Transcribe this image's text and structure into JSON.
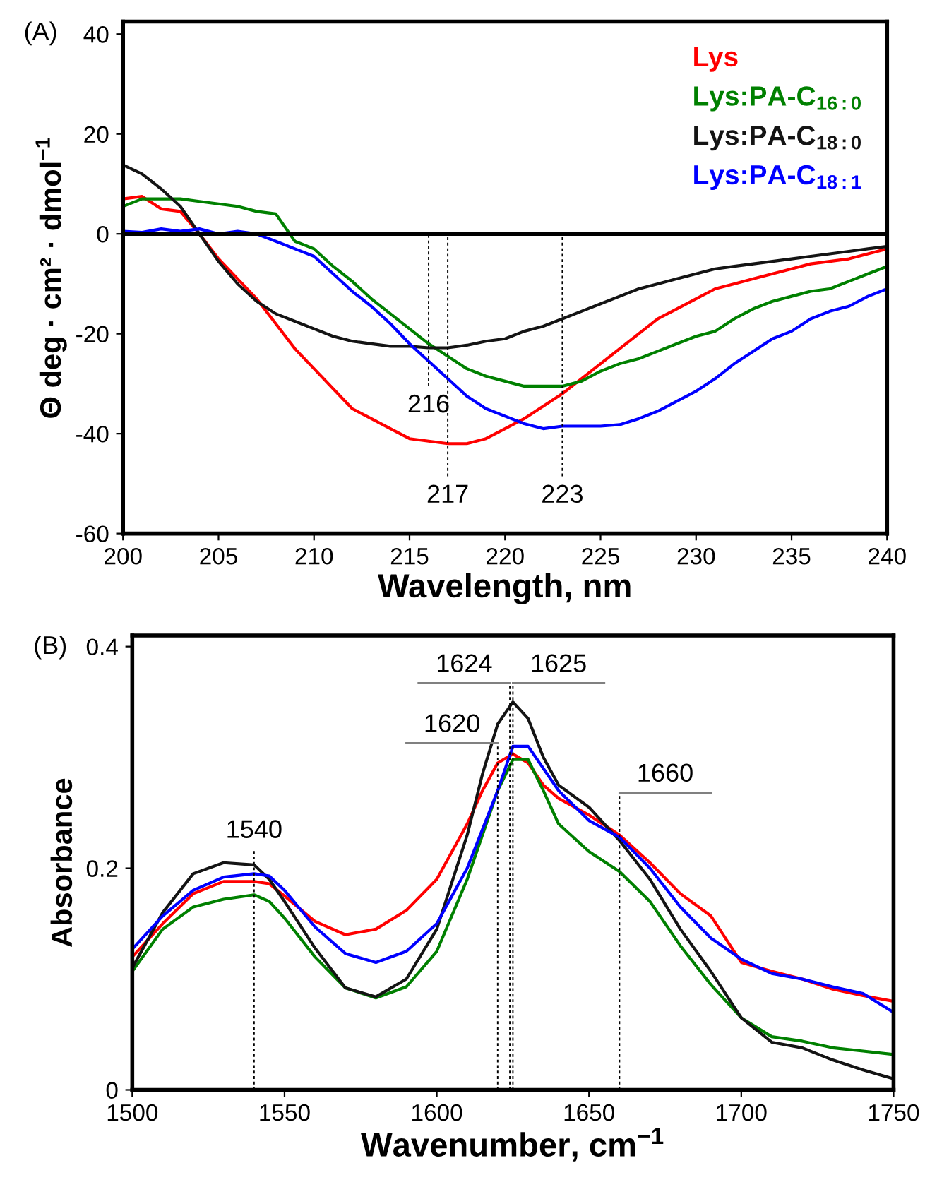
{
  "chart_data": [
    {
      "type": "line",
      "title": "(A)",
      "xlabel": "Wavelength, nm",
      "ylabel": "Θ deg · cm² · dmol$^{−1}$",
      "x": [
        200,
        201,
        202,
        203,
        204,
        205,
        206,
        207,
        208,
        209,
        210,
        211,
        212,
        213,
        214,
        215,
        216,
        217,
        218,
        219,
        220,
        221,
        222,
        223,
        224,
        225,
        226,
        227,
        228,
        229,
        230,
        231,
        232,
        233,
        234,
        235,
        236,
        237,
        238,
        239,
        240
      ],
      "series": [
        {
          "name": "Lys",
          "color": "#ff0000",
          "values": [
            7,
            7.5,
            5,
            4.5,
            0,
            -5,
            -9,
            -13,
            -18,
            -23,
            -27,
            -31,
            -35,
            -37,
            -39,
            -41,
            -41.5,
            -42,
            -42,
            -41,
            -39,
            -37,
            -34.5,
            -32,
            -29,
            -26,
            -23,
            -20,
            -17,
            -15,
            -13,
            -11,
            -10,
            -9,
            -8,
            -7,
            -6,
            -5.5,
            -5,
            -4,
            -3
          ]
        },
        {
          "name": "Lys:PA-C$_{16:0}$",
          "color": "#008000",
          "values": [
            5.5,
            7,
            7,
            7,
            6.5,
            6,
            5.5,
            4.5,
            4,
            -1.5,
            -3,
            -6.5,
            -9.5,
            -13,
            -16,
            -19,
            -22,
            -24.5,
            -27,
            -28.5,
            -29.5,
            -30.5,
            -30.5,
            -30.5,
            -29.5,
            -27.5,
            -26,
            -25,
            -23.5,
            -22,
            -20.5,
            -19.5,
            -17,
            -15,
            -13.5,
            -12.5,
            -11.5,
            -11,
            -9.5,
            -8,
            -6.5
          ]
        },
        {
          "name": "Lys:PA-C$_{18:0}$",
          "color": "#141414",
          "values": [
            13.8,
            12,
            9,
            5.5,
            0,
            -5.5,
            -10,
            -13.5,
            -16,
            -17.5,
            -19,
            -20.5,
            -21.5,
            -22,
            -22.5,
            -22.5,
            -22.8,
            -22.8,
            -22.3,
            -21.5,
            -21,
            -19.5,
            -18.5,
            -17,
            -15.5,
            -14,
            -12.5,
            -11,
            -10,
            -9,
            -8,
            -7,
            -6.5,
            -6,
            -5.5,
            -5,
            -4.5,
            -4,
            -3.5,
            -3,
            -2.5
          ]
        },
        {
          "name": "Lys:PA-C$_{18:1}$",
          "color": "#0000ff",
          "values": [
            0.5,
            0.3,
            1,
            0.5,
            1,
            0,
            0.5,
            0,
            -1.5,
            -3,
            -4.5,
            -8,
            -11.5,
            -14.5,
            -18,
            -22,
            -25.5,
            -29,
            -32.5,
            -35,
            -36.5,
            -38,
            -39,
            -38.5,
            -38.5,
            -38.5,
            -38.2,
            -37,
            -35.5,
            -33.5,
            -31.5,
            -29,
            -26,
            -23.5,
            -21,
            -19.5,
            -17,
            -15.5,
            -14.5,
            -12.5,
            -11
          ]
        }
      ],
      "xlim": [
        200,
        240
      ],
      "xticks": [
        200,
        205,
        210,
        215,
        220,
        225,
        230,
        235,
        240
      ],
      "ylim": [
        -60,
        42.5
      ],
      "yticks": [
        -60,
        -40,
        -20,
        0,
        20,
        40
      ],
      "ref_lines": [
        {
          "axis": "y",
          "value": 0,
          "color": "#000000",
          "line_style": "solid"
        },
        {
          "axis": "x",
          "value": 216,
          "label": "216",
          "color": "#000000",
          "line_style": "dashed"
        },
        {
          "axis": "x",
          "value": 217,
          "label": "217",
          "color": "#000000",
          "line_style": "dashed"
        },
        {
          "axis": "x",
          "value": 223,
          "label": "223",
          "color": "#000000",
          "line_style": "dashed"
        }
      ],
      "legend": "top right",
      "grid": false,
      "line_style": "solid"
    },
    {
      "type": "line",
      "title": "(B)",
      "xlabel": "Wavenumber, cm$^{−1}$",
      "ylabel": "Absorbance",
      "x": [
        1500,
        1510,
        1520,
        1530,
        1540,
        1545,
        1550,
        1560,
        1570,
        1580,
        1590,
        1600,
        1610,
        1615,
        1620,
        1625,
        1630,
        1635,
        1640,
        1650,
        1660,
        1670,
        1680,
        1690,
        1700,
        1710,
        1720,
        1730,
        1740,
        1750
      ],
      "series": [
        {
          "color": "#ff0000",
          "values": [
            0.12,
            0.15,
            0.177,
            0.188,
            0.188,
            0.186,
            0.175,
            0.152,
            0.14,
            0.145,
            0.162,
            0.19,
            0.24,
            0.27,
            0.295,
            0.303,
            0.295,
            0.275,
            0.263,
            0.248,
            0.23,
            0.205,
            0.177,
            0.157,
            0.115,
            0.107,
            0.1,
            0.091,
            0.085,
            0.08
          ]
        },
        {
          "color": "#008000",
          "values": [
            0.107,
            0.145,
            0.165,
            0.172,
            0.176,
            0.17,
            0.155,
            0.12,
            0.092,
            0.083,
            0.093,
            0.125,
            0.19,
            0.23,
            0.27,
            0.298,
            0.298,
            0.27,
            0.24,
            0.215,
            0.197,
            0.17,
            0.13,
            0.095,
            0.065,
            0.048,
            0.044,
            0.038,
            0.035,
            0.032
          ]
        },
        {
          "color": "#141414",
          "values": [
            0.11,
            0.16,
            0.195,
            0.205,
            0.203,
            0.19,
            0.17,
            0.128,
            0.092,
            0.084,
            0.1,
            0.145,
            0.23,
            0.285,
            0.33,
            0.35,
            0.335,
            0.3,
            0.275,
            0.255,
            0.225,
            0.19,
            0.145,
            0.107,
            0.065,
            0.043,
            0.038,
            0.027,
            0.018,
            0.01
          ]
        },
        {
          "color": "#0000ff",
          "values": [
            0.127,
            0.157,
            0.18,
            0.192,
            0.195,
            0.193,
            0.18,
            0.147,
            0.123,
            0.115,
            0.125,
            0.15,
            0.2,
            0.235,
            0.27,
            0.31,
            0.31,
            0.29,
            0.27,
            0.243,
            0.228,
            0.2,
            0.165,
            0.137,
            0.118,
            0.105,
            0.1,
            0.093,
            0.087,
            0.07
          ]
        }
      ],
      "xlim": [
        1500,
        1750
      ],
      "xticks": [
        1500,
        1550,
        1600,
        1650,
        1700,
        1750
      ],
      "ylim": [
        0,
        0.41
      ],
      "yticks": [
        0,
        0.2,
        0.4
      ],
      "ref_lines": [
        {
          "axis": "x",
          "value": 1540,
          "label": "1540",
          "color": "#000000",
          "line_style": "dashed"
        },
        {
          "axis": "x",
          "value": 1620,
          "label": "1620",
          "color": "#000000",
          "line_style": "dashed"
        },
        {
          "axis": "x",
          "value": 1624,
          "label": "1624",
          "color": "#000000",
          "line_style": "dashed"
        },
        {
          "axis": "x",
          "value": 1625,
          "label": "1625",
          "color": "#000000",
          "line_style": "dashed"
        },
        {
          "axis": "x",
          "value": 1660,
          "label": "1660",
          "color": "#000000",
          "line_style": "dashed"
        }
      ],
      "legend": false,
      "grid": false,
      "line_style": "solid"
    }
  ]
}
